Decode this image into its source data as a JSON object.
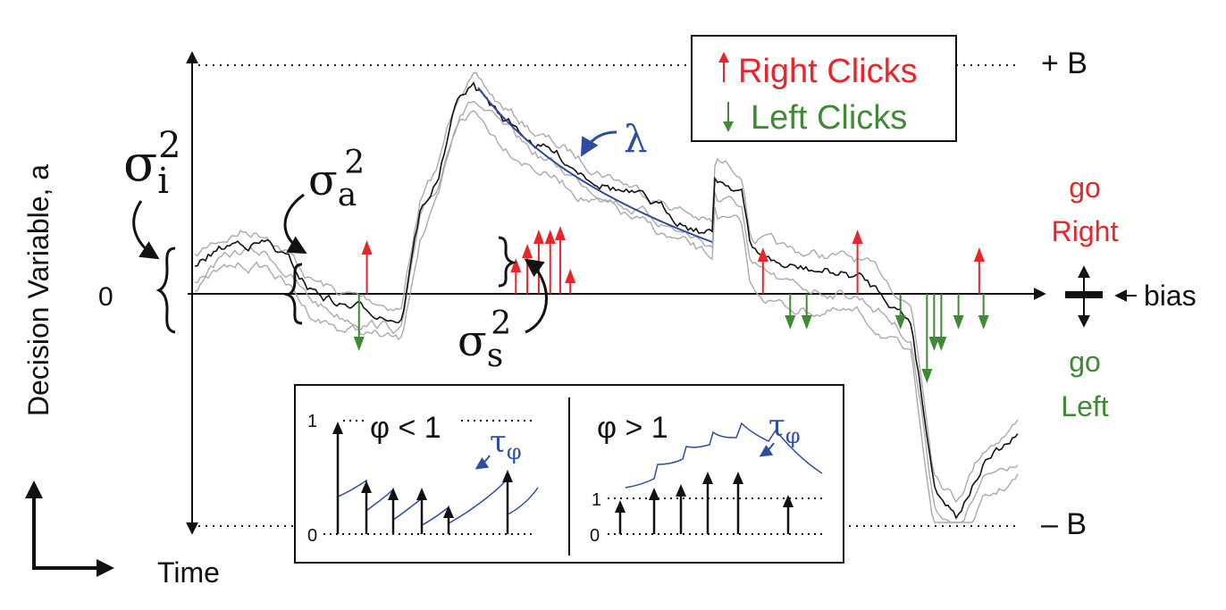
{
  "labels": {
    "upper_bound": "+ B",
    "lower_bound": "– B",
    "zero": "0",
    "y_axis": "Decision Variable, a",
    "time": "Time",
    "bias": "bias",
    "go_right_1": "go",
    "go_right_2": "Right",
    "go_left_1": "go",
    "go_left_2": "Left",
    "lambda": "λ"
  },
  "legend": {
    "right": "Right Clicks",
    "left": "Left Clicks"
  },
  "sigmas": {
    "i": {
      "base": "σ",
      "sub": "i",
      "sup": "2"
    },
    "a": {
      "base": "σ",
      "sub": "a",
      "sup": "2"
    },
    "s": {
      "base": "σ",
      "sub": "s",
      "sup": "2"
    }
  },
  "inset": {
    "left": {
      "title": "φ <  1",
      "tau": "τ",
      "tau_sub": "φ",
      "tick_1": "1",
      "tick_0": "0"
    },
    "right": {
      "title": "φ >  1",
      "tau": "τ",
      "tau_sub": "φ",
      "tick_1": "1",
      "tick_0": "0"
    }
  },
  "colors": {
    "right": "#e8262a",
    "left": "#3f8a35",
    "blue": "#2e4da0",
    "trace_gray": "#aaaaaa",
    "ink": "#111111"
  },
  "clicks": {
    "right": [
      0.244,
      0.452,
      0.468,
      0.484,
      0.5,
      0.514,
      0.528,
      0.797,
      0.929,
      1.099
    ],
    "left": [
      0.233,
      0.835,
      0.858,
      0.989,
      1.026,
      1.036,
      1.046,
      1.07,
      1.105
    ]
  }
}
